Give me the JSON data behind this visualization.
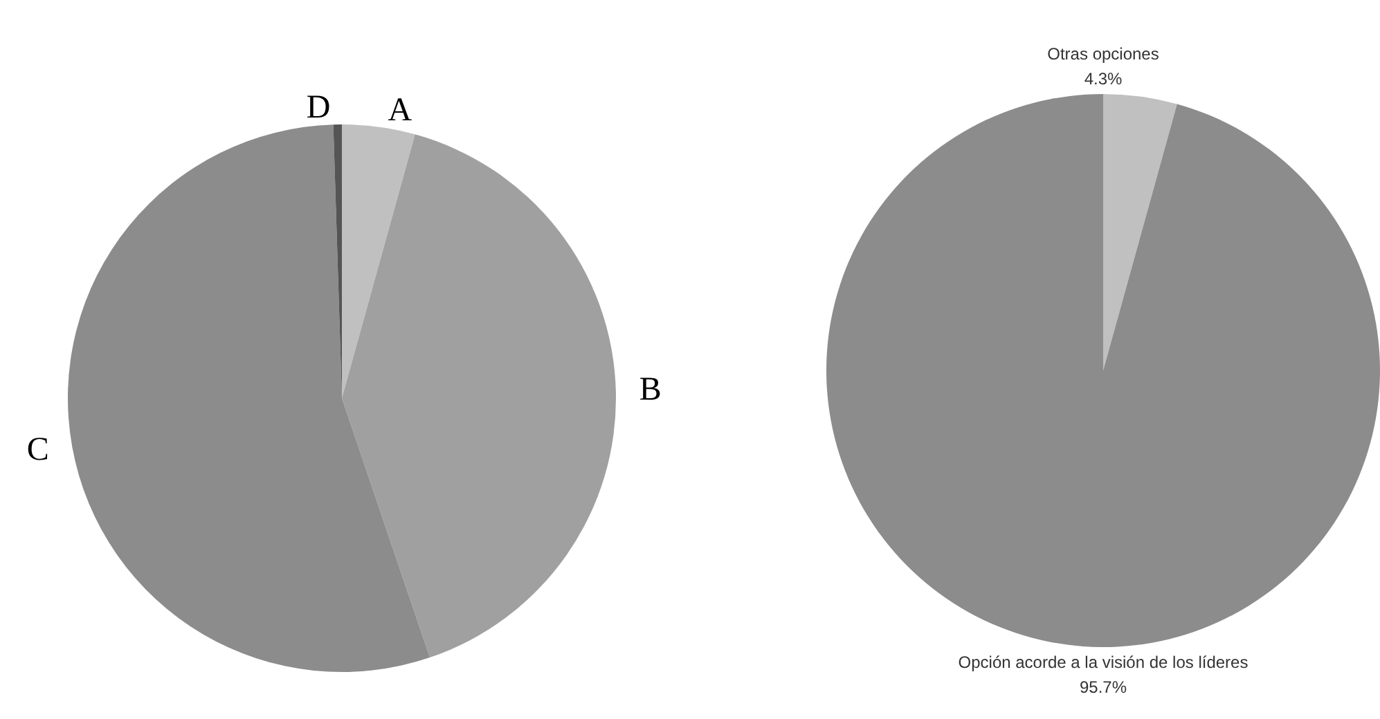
{
  "chart_data": [
    {
      "type": "pie",
      "categories": [
        "A",
        "B",
        "C",
        "D"
      ],
      "values": [
        4.3,
        40.5,
        54.7,
        0.5
      ],
      "colors": [
        "#c0c0c0",
        "#a0a0a0",
        "#8c8c8c",
        "#555555"
      ]
    },
    {
      "type": "pie",
      "categories": [
        "Otras opciones",
        "Opción acorde a la visión de los líderes"
      ],
      "values": [
        4.3,
        95.7
      ],
      "colors": [
        "#c0c0c0",
        "#8c8c8c"
      ],
      "value_labels": [
        "4.3%",
        "95.7%"
      ]
    }
  ]
}
